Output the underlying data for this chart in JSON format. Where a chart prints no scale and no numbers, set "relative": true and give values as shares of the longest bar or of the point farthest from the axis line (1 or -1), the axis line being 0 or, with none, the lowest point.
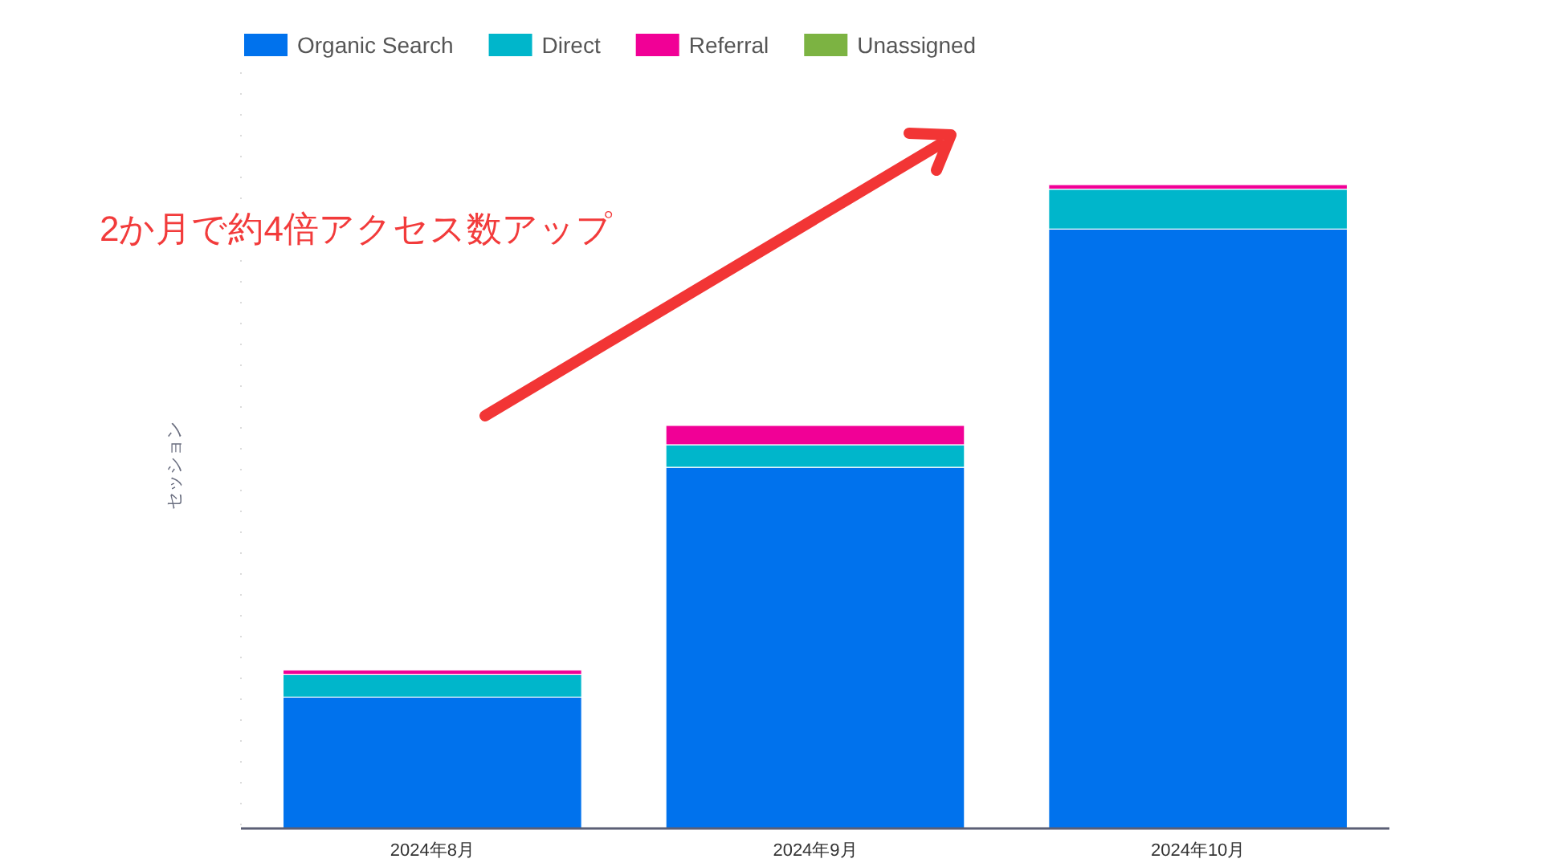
{
  "chart_data": {
    "type": "bar",
    "stacked": true,
    "relative": true,
    "ylabel": "セッション",
    "categories": [
      "2024年8月",
      "2024年9月",
      "2024年10月"
    ],
    "series": [
      {
        "name": "Organic Search",
        "color": "#0072ed",
        "values": [
          0.204,
          0.561,
          0.931
        ]
      },
      {
        "name": "Direct",
        "color": "#00b6cb",
        "values": [
          0.035,
          0.035,
          0.062
        ]
      },
      {
        "name": "Referral",
        "color": "#f10096",
        "values": [
          0.007,
          0.03,
          0.007
        ]
      },
      {
        "name": "Unassigned",
        "color": "#7cb342",
        "values": [
          0,
          0,
          0
        ]
      }
    ],
    "legend": "top left",
    "annotations": [
      "2か月で約4倍アクセス数アップ"
    ]
  }
}
